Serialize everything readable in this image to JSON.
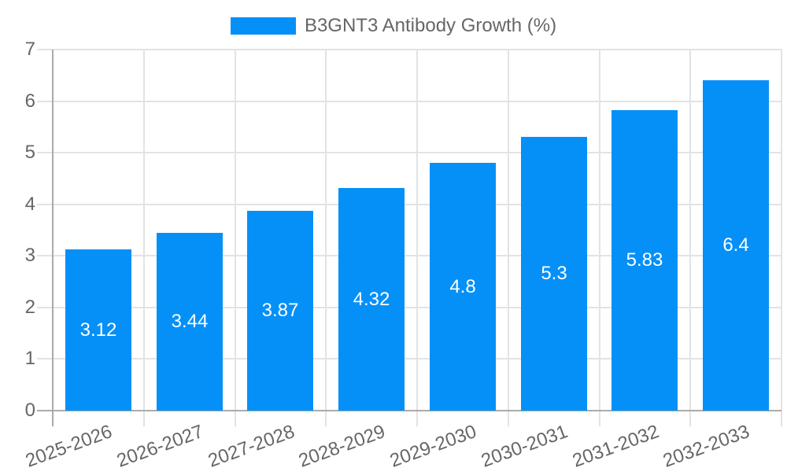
{
  "chart_data": {
    "type": "bar",
    "title": "B3GNT3 Antibody Growth (%)",
    "categories": [
      "2025-2026",
      "2026-2027",
      "2027-2028",
      "2028-2029",
      "2029-2030",
      "2030-2031",
      "2031-2032",
      "2032-2033"
    ],
    "values": [
      3.12,
      3.44,
      3.87,
      4.32,
      4.8,
      5.3,
      5.83,
      6.4
    ],
    "value_labels": [
      "3.12",
      "3.44",
      "3.87",
      "4.32",
      "4.8",
      "5.3",
      "5.83",
      "6.4"
    ],
    "xlabel": "",
    "ylabel": "",
    "ylim": [
      0,
      7
    ],
    "ytick_step": 1,
    "yticks": [
      "0",
      "1",
      "2",
      "3",
      "4",
      "5",
      "6",
      "7"
    ],
    "grid": "on",
    "legend_position": "top-center",
    "value_label_position": "center-inside",
    "colors": {
      "bar": "#0590f8",
      "value_label": "#ffffff",
      "axis_text": "#666666",
      "gridline": "#e3e3e3",
      "zero_line": "#ababab",
      "background": "#ffffff"
    }
  }
}
